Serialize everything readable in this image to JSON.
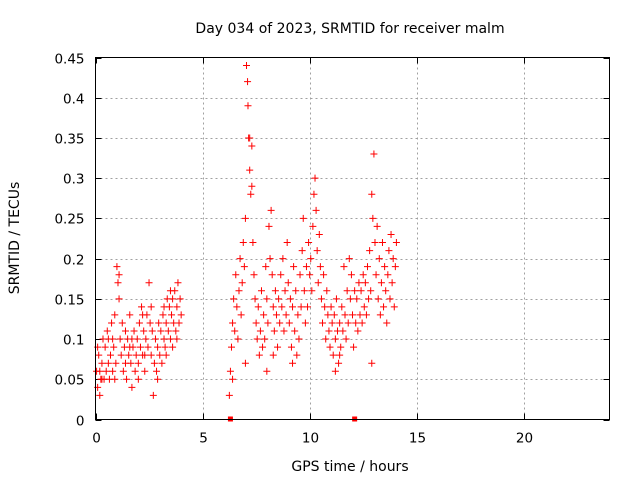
{
  "chart_data": {
    "type": "scatter",
    "title": "Day 034 of 2023, SRMTID for receiver malm",
    "xlabel": "GPS time / hours",
    "ylabel": "SRMTID / TECUs",
    "xlim": [
      0,
      24
    ],
    "ylim": [
      0,
      0.45
    ],
    "xticks": [
      0,
      5,
      10,
      15,
      20
    ],
    "xtick_labels": [
      "0",
      "5",
      "10",
      "15",
      "20"
    ],
    "yticks": [
      0,
      0.05,
      0.1,
      0.15,
      0.2,
      0.25,
      0.3,
      0.35,
      0.4,
      0.45
    ],
    "ytick_labels": [
      "0",
      "0.05",
      "0.1",
      "0.15",
      "0.2",
      "0.25",
      "0.3",
      "0.35",
      "0.4",
      "0.45"
    ],
    "grid": true,
    "marker": "+",
    "color": "#ff0000",
    "series": [
      {
        "name": "SRMTID",
        "points": [
          [
            0.05,
            0.06
          ],
          [
            0.1,
            0.04
          ],
          [
            0.15,
            0.08
          ],
          [
            0.2,
            0.03
          ],
          [
            0.25,
            0.05
          ],
          [
            0.3,
            0.07
          ],
          [
            0.35,
            0.1
          ],
          [
            0.4,
            0.05
          ],
          [
            0.45,
            0.09
          ],
          [
            0.5,
            0.06
          ],
          [
            0.55,
            0.11
          ],
          [
            0.6,
            0.07
          ],
          [
            0.65,
            0.05
          ],
          [
            0.7,
            0.08
          ],
          [
            0.75,
            0.12
          ],
          [
            0.8,
            0.06
          ],
          [
            0.85,
            0.09
          ],
          [
            0.9,
            0.13
          ],
          [
            0.95,
            0.07
          ],
          [
            1.0,
            0.19
          ],
          [
            1.05,
            0.17
          ],
          [
            1.1,
            0.15
          ],
          [
            1.15,
            0.1
          ],
          [
            1.2,
            0.08
          ],
          [
            1.25,
            0.12
          ],
          [
            1.3,
            0.06
          ],
          [
            1.35,
            0.09
          ],
          [
            1.4,
            0.11
          ],
          [
            1.45,
            0.05
          ],
          [
            1.5,
            0.1
          ],
          [
            1.55,
            0.08
          ],
          [
            1.6,
            0.13
          ],
          [
            1.65,
            0.07
          ],
          [
            1.7,
            0.04
          ],
          [
            1.75,
            0.09
          ],
          [
            1.8,
            0.11
          ],
          [
            1.85,
            0.06
          ],
          [
            1.9,
            0.08
          ],
          [
            1.95,
            0.1
          ],
          [
            2.0,
            0.07
          ],
          [
            2.05,
            0.12
          ],
          [
            2.1,
            0.09
          ],
          [
            2.15,
            0.14
          ],
          [
            2.2,
            0.08
          ],
          [
            2.25,
            0.11
          ],
          [
            2.3,
            0.06
          ],
          [
            2.35,
            0.1
          ],
          [
            2.4,
            0.13
          ],
          [
            2.45,
            0.09
          ],
          [
            2.5,
            0.17
          ],
          [
            2.55,
            0.12
          ],
          [
            2.6,
            0.08
          ],
          [
            2.65,
            0.11
          ],
          [
            2.7,
            0.03
          ],
          [
            2.75,
            0.07
          ],
          [
            2.8,
            0.1
          ],
          [
            2.85,
            0.06
          ],
          [
            2.9,
            0.09
          ],
          [
            2.95,
            0.12
          ],
          [
            3.0,
            0.08
          ],
          [
            3.05,
            0.11
          ],
          [
            3.1,
            0.07
          ],
          [
            3.15,
            0.13
          ],
          [
            3.2,
            0.1
          ],
          [
            3.25,
            0.09
          ],
          [
            3.3,
            0.12
          ],
          [
            3.35,
            0.15
          ],
          [
            3.4,
            0.11
          ],
          [
            3.45,
            0.14
          ],
          [
            3.5,
            0.1
          ],
          [
            3.55,
            0.13
          ],
          [
            3.6,
            0.09
          ],
          [
            3.65,
            0.12
          ],
          [
            3.7,
            0.16
          ],
          [
            3.75,
            0.11
          ],
          [
            3.8,
            0.14
          ],
          [
            3.85,
            0.17
          ],
          [
            3.9,
            0.12
          ],
          [
            3.95,
            0.15
          ],
          [
            4.0,
            0.13
          ],
          [
            0.1,
            0.09
          ],
          [
            0.3,
            0.05
          ],
          [
            0.6,
            0.1
          ],
          [
            0.9,
            0.05
          ],
          [
            1.1,
            0.18
          ],
          [
            1.4,
            0.07
          ],
          [
            1.7,
            0.1
          ],
          [
            2.0,
            0.05
          ],
          [
            2.3,
            0.08
          ],
          [
            2.6,
            0.14
          ],
          [
            2.9,
            0.05
          ],
          [
            3.2,
            0.14
          ],
          [
            3.5,
            0.16
          ],
          [
            3.8,
            0.1
          ],
          [
            3.6,
            0.15
          ],
          [
            3.3,
            0.08
          ],
          [
            2.2,
            0.13
          ],
          [
            1.6,
            0.09
          ],
          [
            0.8,
            0.1
          ],
          [
            0.2,
            0.06
          ],
          [
            6.25,
            0.03
          ],
          [
            6.3,
            0.06
          ],
          [
            6.35,
            0.09
          ],
          [
            6.4,
            0.12
          ],
          [
            6.45,
            0.15
          ],
          [
            6.5,
            0.11
          ],
          [
            6.55,
            0.18
          ],
          [
            6.6,
            0.14
          ],
          [
            6.65,
            0.1
          ],
          [
            6.7,
            0.16
          ],
          [
            6.75,
            0.2
          ],
          [
            6.8,
            0.13
          ],
          [
            6.85,
            0.17
          ],
          [
            6.9,
            0.22
          ],
          [
            6.95,
            0.19
          ],
          [
            7.0,
            0.25
          ],
          [
            7.05,
            0.44
          ],
          [
            7.1,
            0.42
          ],
          [
            7.12,
            0.39
          ],
          [
            7.15,
            0.35
          ],
          [
            7.2,
            0.31
          ],
          [
            7.25,
            0.28
          ],
          [
            7.3,
            0.34
          ],
          [
            7.35,
            0.22
          ],
          [
            7.4,
            0.18
          ],
          [
            7.45,
            0.15
          ],
          [
            7.5,
            0.12
          ],
          [
            7.55,
            0.1
          ],
          [
            7.6,
            0.14
          ],
          [
            7.65,
            0.08
          ],
          [
            7.7,
            0.11
          ],
          [
            7.75,
            0.16
          ],
          [
            7.8,
            0.09
          ],
          [
            7.85,
            0.13
          ],
          [
            7.9,
            0.1
          ],
          [
            7.95,
            0.19
          ],
          [
            8.0,
            0.15
          ],
          [
            8.05,
            0.12
          ],
          [
            8.1,
            0.24
          ],
          [
            8.15,
            0.2
          ],
          [
            8.2,
            0.26
          ],
          [
            8.25,
            0.18
          ],
          [
            8.3,
            0.14
          ],
          [
            8.35,
            0.11
          ],
          [
            8.4,
            0.16
          ],
          [
            8.45,
            0.13
          ],
          [
            8.5,
            0.09
          ],
          [
            8.55,
            0.15
          ],
          [
            8.6,
            0.12
          ],
          [
            8.65,
            0.18
          ],
          [
            8.7,
            0.14
          ],
          [
            8.75,
            0.2
          ],
          [
            8.8,
            0.11
          ],
          [
            8.85,
            0.16
          ],
          [
            8.9,
            0.13
          ],
          [
            8.95,
            0.22
          ],
          [
            9.0,
            0.17
          ],
          [
            9.05,
            0.12
          ],
          [
            9.1,
            0.15
          ],
          [
            9.15,
            0.09
          ],
          [
            9.2,
            0.14
          ],
          [
            9.25,
            0.19
          ],
          [
            9.3,
            0.11
          ],
          [
            9.35,
            0.16
          ],
          [
            9.4,
            0.08
          ],
          [
            9.45,
            0.13
          ],
          [
            9.5,
            0.1
          ],
          [
            9.55,
            0.18
          ],
          [
            9.6,
            0.14
          ],
          [
            9.65,
            0.21
          ],
          [
            9.7,
            0.25
          ],
          [
            9.75,
            0.16
          ],
          [
            9.8,
            0.12
          ],
          [
            9.85,
            0.19
          ],
          [
            9.9,
            0.14
          ],
          [
            9.95,
            0.22
          ],
          [
            10.0,
            0.18
          ],
          [
            10.05,
            0.2
          ],
          [
            10.1,
            0.16
          ],
          [
            10.15,
            0.24
          ],
          [
            10.2,
            0.28
          ],
          [
            10.25,
            0.3
          ],
          [
            10.3,
            0.26
          ],
          [
            10.35,
            0.21
          ],
          [
            10.4,
            0.17
          ],
          [
            10.45,
            0.23
          ],
          [
            10.5,
            0.19
          ],
          [
            10.55,
            0.15
          ],
          [
            10.6,
            0.12
          ],
          [
            10.65,
            0.18
          ],
          [
            10.7,
            0.14
          ],
          [
            10.75,
            0.1
          ],
          [
            10.8,
            0.16
          ],
          [
            10.85,
            0.13
          ],
          [
            10.9,
            0.11
          ],
          [
            10.95,
            0.09
          ],
          [
            11.0,
            0.14
          ],
          [
            11.05,
            0.12
          ],
          [
            11.1,
            0.08
          ],
          [
            11.15,
            0.13
          ],
          [
            11.2,
            0.1
          ],
          [
            11.25,
            0.15
          ],
          [
            11.3,
            0.11
          ],
          [
            11.35,
            0.07
          ],
          [
            11.4,
            0.12
          ],
          [
            11.45,
            0.09
          ],
          [
            11.5,
            0.14
          ],
          [
            11.55,
            0.11
          ],
          [
            11.6,
            0.19
          ],
          [
            11.65,
            0.13
          ],
          [
            11.7,
            0.1
          ],
          [
            11.75,
            0.16
          ],
          [
            11.8,
            0.12
          ],
          [
            11.85,
            0.2
          ],
          [
            11.9,
            0.15
          ],
          [
            11.95,
            0.18
          ],
          [
            12.0,
            0.13
          ],
          [
            12.05,
            0.09
          ],
          [
            12.1,
            0.16
          ],
          [
            12.15,
            0.12
          ],
          [
            12.2,
            0.15
          ],
          [
            12.25,
            0.11
          ],
          [
            12.3,
            0.17
          ],
          [
            12.35,
            0.13
          ],
          [
            12.4,
            0.16
          ],
          [
            12.45,
            0.12
          ],
          [
            12.5,
            0.18
          ],
          [
            12.55,
            0.14
          ],
          [
            12.6,
            0.17
          ],
          [
            12.65,
            0.13
          ],
          [
            12.7,
            0.19
          ],
          [
            12.75,
            0.15
          ],
          [
            12.8,
            0.21
          ],
          [
            12.85,
            0.16
          ],
          [
            12.9,
            0.28
          ],
          [
            12.95,
            0.25
          ],
          [
            13.0,
            0.33
          ],
          [
            13.05,
            0.22
          ],
          [
            13.1,
            0.18
          ],
          [
            13.15,
            0.24
          ],
          [
            13.2,
            0.15
          ],
          [
            13.25,
            0.2
          ],
          [
            13.3,
            0.13
          ],
          [
            13.35,
            0.17
          ],
          [
            13.4,
            0.22
          ],
          [
            13.45,
            0.14
          ],
          [
            13.5,
            0.19
          ],
          [
            13.55,
            0.16
          ],
          [
            13.6,
            0.12
          ],
          [
            13.65,
            0.18
          ],
          [
            13.7,
            0.21
          ],
          [
            13.75,
            0.15
          ],
          [
            13.8,
            0.23
          ],
          [
            13.85,
            0.17
          ],
          [
            13.9,
            0.2
          ],
          [
            13.95,
            0.14
          ],
          [
            14.0,
            0.19
          ],
          [
            14.05,
            0.22
          ],
          [
            7.3,
            0.29
          ],
          [
            7.2,
            0.35
          ],
          [
            8.0,
            0.06
          ],
          [
            8.3,
            0.08
          ],
          [
            9.2,
            0.07
          ],
          [
            11.2,
            0.06
          ],
          [
            11.4,
            0.08
          ],
          [
            12.9,
            0.07
          ],
          [
            7.0,
            0.07
          ],
          [
            6.4,
            0.05
          ]
        ],
        "baseline_markers": [
          [
            6.3,
            0.0
          ],
          [
            12.1,
            0.0
          ]
        ]
      }
    ]
  }
}
